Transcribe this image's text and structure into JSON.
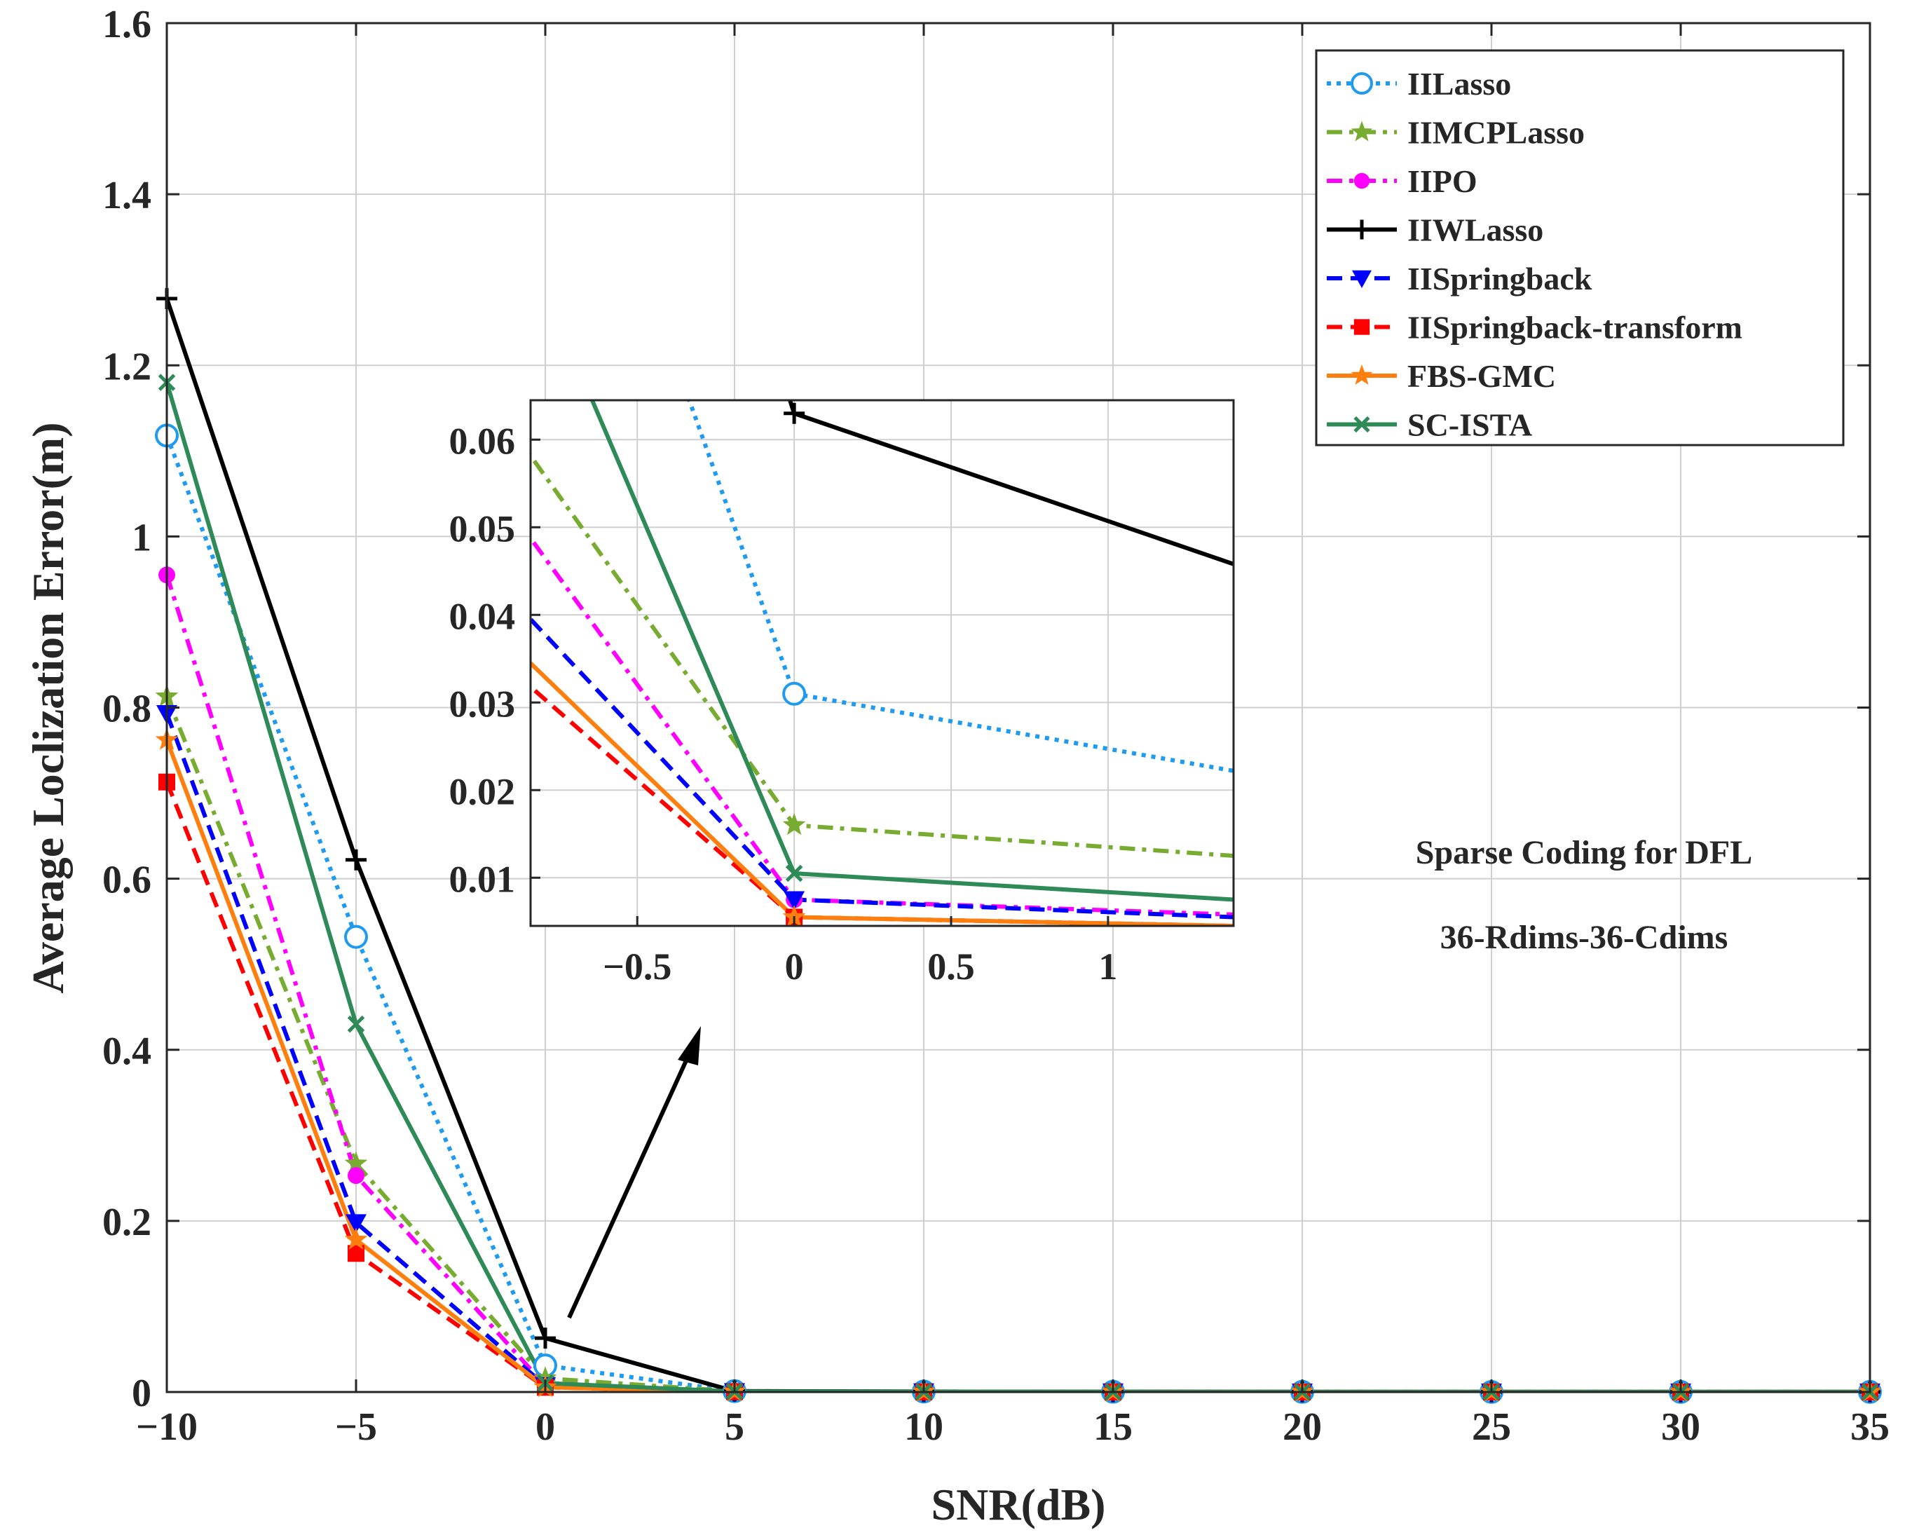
{
  "chart_data": {
    "type": "line",
    "xlabel": "SNR(dB)",
    "ylabel": "Average Loclization Error(m)",
    "xlim": [
      -10,
      35
    ],
    "ylim": [
      0,
      1.6
    ],
    "x_ticks": [
      -10,
      -5,
      0,
      5,
      10,
      15,
      20,
      25,
      30,
      35
    ],
    "x_tick_labels": [
      "−10",
      "−5",
      "0",
      "5",
      "10",
      "15",
      "20",
      "25",
      "30",
      "35"
    ],
    "y_ticks": [
      0,
      0.2,
      0.4,
      0.6,
      0.8,
      1,
      1.2,
      1.4,
      1.6
    ],
    "y_tick_labels": [
      "0",
      "0.2",
      "0.4",
      "0.6",
      "0.8",
      "1",
      "1.2",
      "1.4",
      "1.6"
    ],
    "grid": true,
    "legend_position": "top-right",
    "x": [
      -10,
      -5,
      0,
      5,
      10,
      15,
      20,
      25,
      30,
      35
    ],
    "series": [
      {
        "name": "IILasso",
        "color": "#1e9bf0",
        "dash": "dotted",
        "marker": "circle",
        "values": [
          1.118,
          0.532,
          0.031,
          0.001,
          0.0005,
          0.0003,
          0.0002,
          0.0001,
          0.0001,
          0.0001
        ]
      },
      {
        "name": "IIMCPLasso",
        "color": "#77ac30",
        "dash": "dashdot",
        "marker": "star",
        "values": [
          0.813,
          0.267,
          0.016,
          0.0008,
          0.0004,
          0.0002,
          0.0001,
          0.0001,
          0.0001,
          0.0001
        ]
      },
      {
        "name": "IIPO",
        "color": "#ff00ff",
        "dash": "dashdot",
        "marker": "dot",
        "values": [
          0.955,
          0.253,
          0.0075,
          0.0006,
          0.0003,
          0.0002,
          0.0001,
          0.0001,
          0.0001,
          0.0001
        ]
      },
      {
        "name": "IIWLasso",
        "color": "#000000",
        "dash": "solid",
        "marker": "plus",
        "values": [
          1.278,
          0.622,
          0.063,
          0.001,
          0.0005,
          0.0003,
          0.0002,
          0.0001,
          0.0001,
          0.0001
        ]
      },
      {
        "name": "IISpringback",
        "color": "#0000ff",
        "dash": "dashed",
        "marker": "triangle-down",
        "values": [
          0.793,
          0.198,
          0.0075,
          0.0005,
          0.0003,
          0.0002,
          0.0001,
          0.0001,
          0.0001,
          0.0001
        ]
      },
      {
        "name": "IISpringback-transform",
        "color": "#ff0000",
        "dash": "dashed",
        "marker": "square",
        "values": [
          0.713,
          0.162,
          0.0055,
          0.0004,
          0.0002,
          0.0001,
          0.0001,
          0.0001,
          0.0001,
          0.0001
        ]
      },
      {
        "name": "FBS-GMC",
        "color": "#ff7f0e",
        "dash": "solid",
        "marker": "star",
        "values": [
          0.762,
          0.178,
          0.0055,
          0.0004,
          0.0002,
          0.0001,
          0.0001,
          0.0001,
          0.0001,
          0.0001
        ]
      },
      {
        "name": "SC-ISTA",
        "color": "#2e8b57",
        "dash": "solid",
        "marker": "x",
        "values": [
          1.18,
          0.43,
          0.0105,
          0.0006,
          0.0003,
          0.0002,
          0.0001,
          0.0001,
          0.0001,
          0.0001
        ]
      }
    ],
    "annotations": [
      "Sparse Coding for DFL",
      "36-Rdims-36-Cdims"
    ],
    "inset": {
      "xlim": [
        -0.84,
        1.4
      ],
      "ylim": [
        0.0045,
        0.0645
      ],
      "x_ticks": [
        -0.5,
        0,
        0.5,
        1
      ],
      "x_tick_labels": [
        "−0.5",
        "0",
        "0.5",
        "1"
      ],
      "y_ticks": [
        0.01,
        0.02,
        0.03,
        0.04,
        0.05,
        0.06
      ],
      "y_tick_labels": [
        "0.01",
        "0.02",
        "0.03",
        "0.04",
        "0.05",
        "0.06"
      ],
      "grid": true,
      "series_at_x_1_4": [
        0.0222,
        0.0125,
        0.0058,
        0.0458,
        0.0055,
        0.0045,
        0.0045,
        0.0075
      ]
    }
  }
}
